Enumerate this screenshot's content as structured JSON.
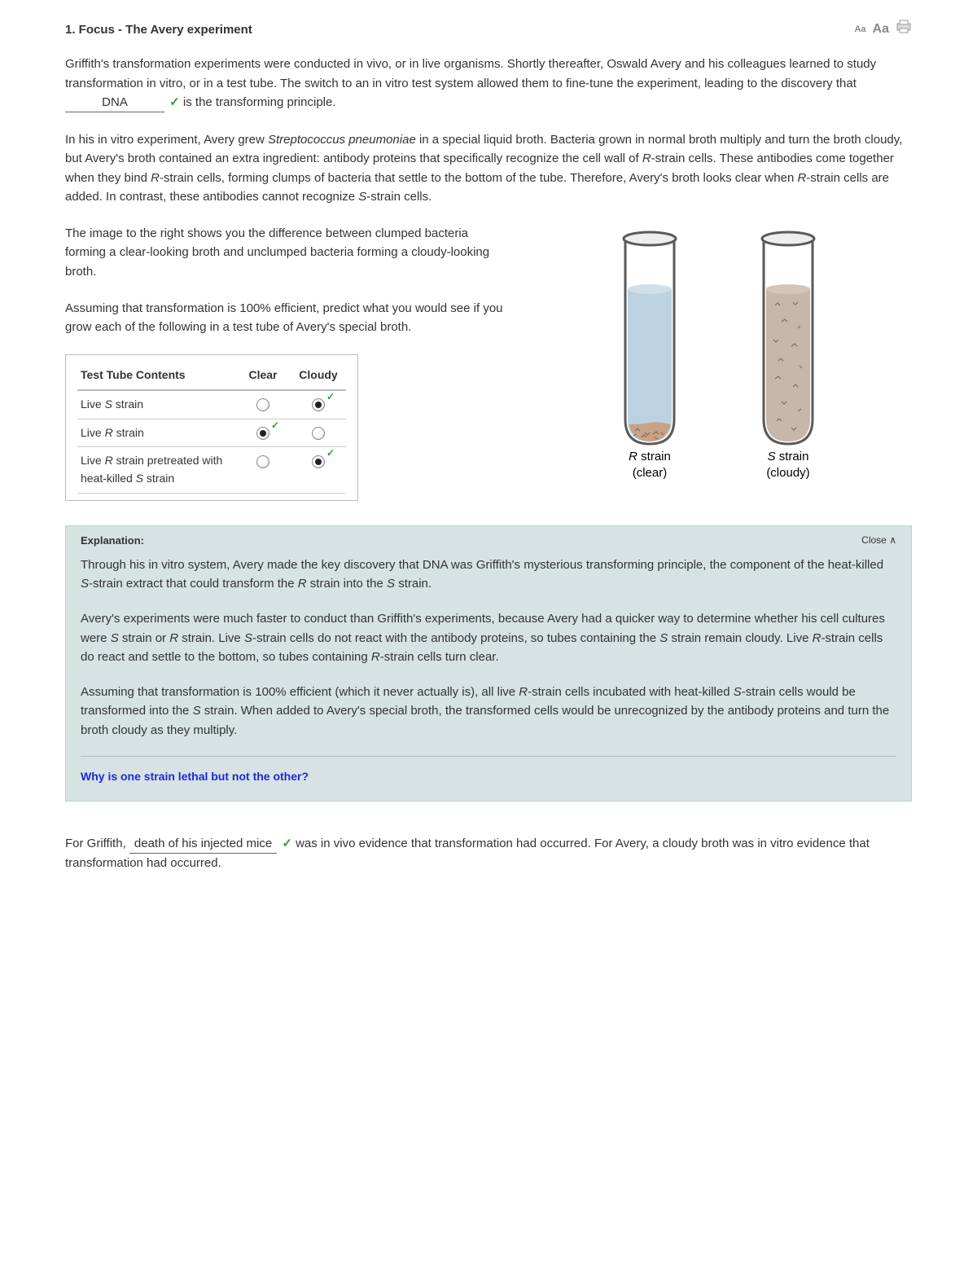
{
  "header": {
    "title": "1.  Focus - The Avery experiment",
    "tool_small": "Aa",
    "tool_large": "Aa"
  },
  "para1": {
    "pre": "Griffith's transformation experiments were conducted in vivo, or in live organisms. Shortly thereafter, Oswald Avery and his colleagues learned to study transformation in vitro, or in a test tube. The switch to an in vitro test system allowed them to fine-tune the experiment, leading to the discovery that ",
    "blank1": "DNA",
    "post": " is the transforming principle."
  },
  "para2": "In his in vitro experiment, Avery grew Streptococcus pneumoniae in a special liquid broth. Bacteria grown in normal broth multiply and turn the broth cloudy, but Avery's broth contained an extra ingredient: antibody proteins that specifically recognize the cell wall of R-strain cells. These antibodies come together when they bind R-strain cells, forming clumps of bacteria that settle to the bottom of the tube. Therefore, Avery's broth looks clear when R-strain cells are added. In contrast, these antibodies cannot recognize S-strain cells.",
  "para3": "The image to the right shows you the difference between clumped bacteria forming a clear-looking broth and unclumped bacteria forming a cloudy-looking broth.",
  "para4": "Assuming that transformation is 100% efficient, predict what you would see if you grow each of the following in a test tube of Avery's special broth.",
  "table": {
    "headers": [
      "Test Tube Contents",
      "Clear",
      "Cloudy"
    ],
    "rows": [
      {
        "label_html": "Live <em>S</em> strain",
        "clear": false,
        "cloudy": true
      },
      {
        "label_html": "Live <em>R</em> strain",
        "clear": true,
        "cloudy": false
      },
      {
        "label_html": "Live <em>R</em> strain pretreated with heat-killed <em>S</em> strain",
        "clear": false,
        "cloudy": true
      }
    ]
  },
  "tubes": {
    "left": {
      "label1": "R strain",
      "label2": "(clear)"
    },
    "right": {
      "label1": "S strain",
      "label2": "(cloudy)"
    },
    "colors": {
      "glass_stroke": "#5a5a5a",
      "glass_fill_top": "#f7f7f7",
      "liquid_clear": "#bcd2e0",
      "liquid_cloudy": "#c7b6aa",
      "sediment": "#c7a288",
      "bacteria": "#8a6a52"
    }
  },
  "explanation": {
    "title": "Explanation:",
    "close": "Close",
    "p1": "Through his in vitro system, Avery made the key discovery that DNA was Griffith's mysterious transforming principle, the component of the heat-killed S-strain extract that could transform the R strain into the S strain.",
    "p2": "Avery's experiments were much faster to conduct than Griffith's experiments, because Avery had a quicker way to determine whether his cell cultures were S strain or R strain. Live S-strain cells do not react with the antibody proteins, so tubes containing the S strain remain cloudy. Live R-strain cells do react and settle to the bottom, so tubes containing R-strain cells turn clear.",
    "p3": "Assuming that transformation is 100% efficient (which it never actually is), all live R-strain cells incubated with heat-killed S-strain cells would be transformed into the S strain. When added to Avery's special broth, the transformed cells would be unrecognized by the antibody proteins and turn the broth cloudy as they multiply.",
    "link": "Why is one strain lethal but not the other?"
  },
  "para5": {
    "pre": "For Griffith, ",
    "blank2": "death of his injected mice",
    "post": " was in vivo evidence that transformation had occurred. For Avery, a cloudy broth was in vitro evidence that transformation had occurred."
  }
}
